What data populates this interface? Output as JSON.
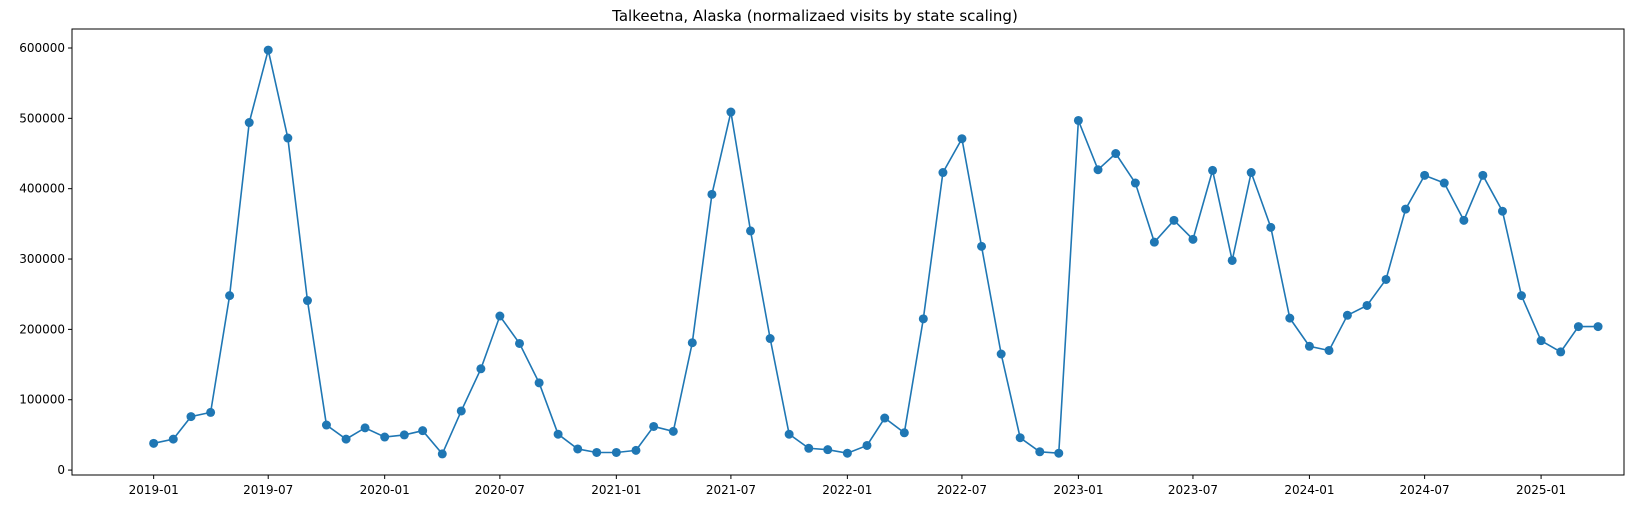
{
  "chart_data": {
    "type": "line",
    "title": "Talkeetna, Alaska (normalizaed visits by state scaling)",
    "xlabel": "",
    "ylabel": "",
    "x_ticks": [
      "2019-01",
      "2019-07",
      "2020-01",
      "2020-07",
      "2021-01",
      "2021-07",
      "2022-01",
      "2022-07",
      "2023-01",
      "2023-07",
      "2024-01",
      "2024-07",
      "2025-01"
    ],
    "y_ticks": [
      "0",
      "100000",
      "200000",
      "300000",
      "400000",
      "500000",
      "600000"
    ],
    "ylim": [
      -7000,
      627000
    ],
    "xlim": [
      "2018-08-25",
      "2025-05-12"
    ],
    "grid": false,
    "line_color": "#1f77b4",
    "marker": "circle",
    "series": [
      {
        "x": [
          "2019-01",
          "2019-02",
          "2019-03",
          "2019-04",
          "2019-05",
          "2019-06",
          "2019-07",
          "2019-08",
          "2019-09",
          "2019-10",
          "2019-11",
          "2019-12",
          "2020-01",
          "2020-02",
          "2020-03",
          "2020-04",
          "2020-05",
          "2020-06",
          "2020-07",
          "2020-08",
          "2020-09",
          "2020-10",
          "2020-11",
          "2020-12",
          "2021-01",
          "2021-02",
          "2021-03",
          "2021-04",
          "2021-05",
          "2021-06",
          "2021-07",
          "2021-08",
          "2021-09",
          "2021-10",
          "2021-11",
          "2021-12",
          "2022-01",
          "2022-02",
          "2022-03",
          "2022-04",
          "2022-05",
          "2022-06",
          "2022-07",
          "2022-08",
          "2022-09",
          "2022-10",
          "2022-11",
          "2022-12",
          "2023-01",
          "2023-02",
          "2023-03",
          "2023-04",
          "2023-05",
          "2023-06",
          "2023-07",
          "2023-08",
          "2023-09",
          "2023-10",
          "2023-11",
          "2023-12",
          "2024-01",
          "2024-02",
          "2024-03",
          "2024-04",
          "2024-05",
          "2024-06",
          "2024-07",
          "2024-08",
          "2024-09",
          "2024-10",
          "2024-11",
          "2024-12",
          "2025-01",
          "2025-02",
          "2025-03",
          "2025-04"
        ],
        "values": [
          38000,
          44000,
          76000,
          82000,
          248000,
          494000,
          597000,
          472000,
          241000,
          64000,
          44000,
          60000,
          47000,
          50000,
          56000,
          23000,
          84000,
          144000,
          219000,
          180000,
          124000,
          51000,
          30000,
          25000,
          25000,
          28000,
          62000,
          55000,
          181000,
          392000,
          509000,
          340000,
          187000,
          51000,
          31000,
          29000,
          24000,
          35000,
          74000,
          53000,
          215000,
          423000,
          471000,
          318000,
          165000,
          46000,
          26000,
          24000,
          497000,
          427000,
          450000,
          408000,
          324000,
          355000,
          328000,
          426000,
          298000,
          423000,
          345000,
          216000,
          176000,
          170000,
          220000,
          234000,
          271000,
          371000,
          419000,
          408000,
          355000,
          419000,
          368000,
          248000,
          184000,
          168000,
          204000,
          204000
        ]
      }
    ]
  }
}
